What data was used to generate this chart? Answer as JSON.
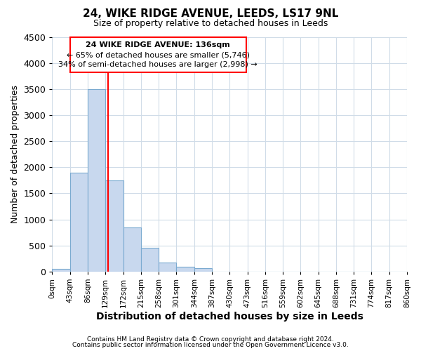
{
  "title1": "24, WIKE RIDGE AVENUE, LEEDS, LS17 9NL",
  "title2": "Size of property relative to detached houses in Leeds",
  "xlabel": "Distribution of detached houses by size in Leeds",
  "ylabel": "Number of detached properties",
  "bin_edges": [
    0,
    43,
    86,
    129,
    172,
    215,
    258,
    301,
    344,
    387,
    430,
    473,
    516,
    559,
    602,
    645,
    688,
    731,
    774,
    817,
    860
  ],
  "bin_labels": [
    "0sqm",
    "43sqm",
    "86sqm",
    "129sqm",
    "172sqm",
    "215sqm",
    "258sqm",
    "301sqm",
    "344sqm",
    "387sqm",
    "430sqm",
    "473sqm",
    "516sqm",
    "559sqm",
    "602sqm",
    "645sqm",
    "688sqm",
    "731sqm",
    "774sqm",
    "817sqm",
    "860sqm"
  ],
  "bar_heights": [
    50,
    1900,
    3500,
    1750,
    850,
    450,
    175,
    90,
    60,
    0,
    0,
    0,
    0,
    0,
    0,
    0,
    0,
    0,
    0,
    0
  ],
  "bar_color": "#c8d8ee",
  "bar_edge_color": "#7aaad0",
  "red_line_x": 136,
  "annotation_text_line1": "24 WIKE RIDGE AVENUE: 136sqm",
  "annotation_text_line2": "← 65% of detached houses are smaller (5,746)",
  "annotation_text_line3": "34% of semi-detached houses are larger (2,998) →",
  "ylim": [
    0,
    4500
  ],
  "xlim": [
    0,
    860
  ],
  "footnote1": "Contains HM Land Registry data © Crown copyright and database right 2024.",
  "footnote2": "Contains public sector information licensed under the Open Government Licence v3.0.",
  "background_color": "#ffffff",
  "plot_bg_color": "#ffffff",
  "grid_color": "#d0dce8"
}
